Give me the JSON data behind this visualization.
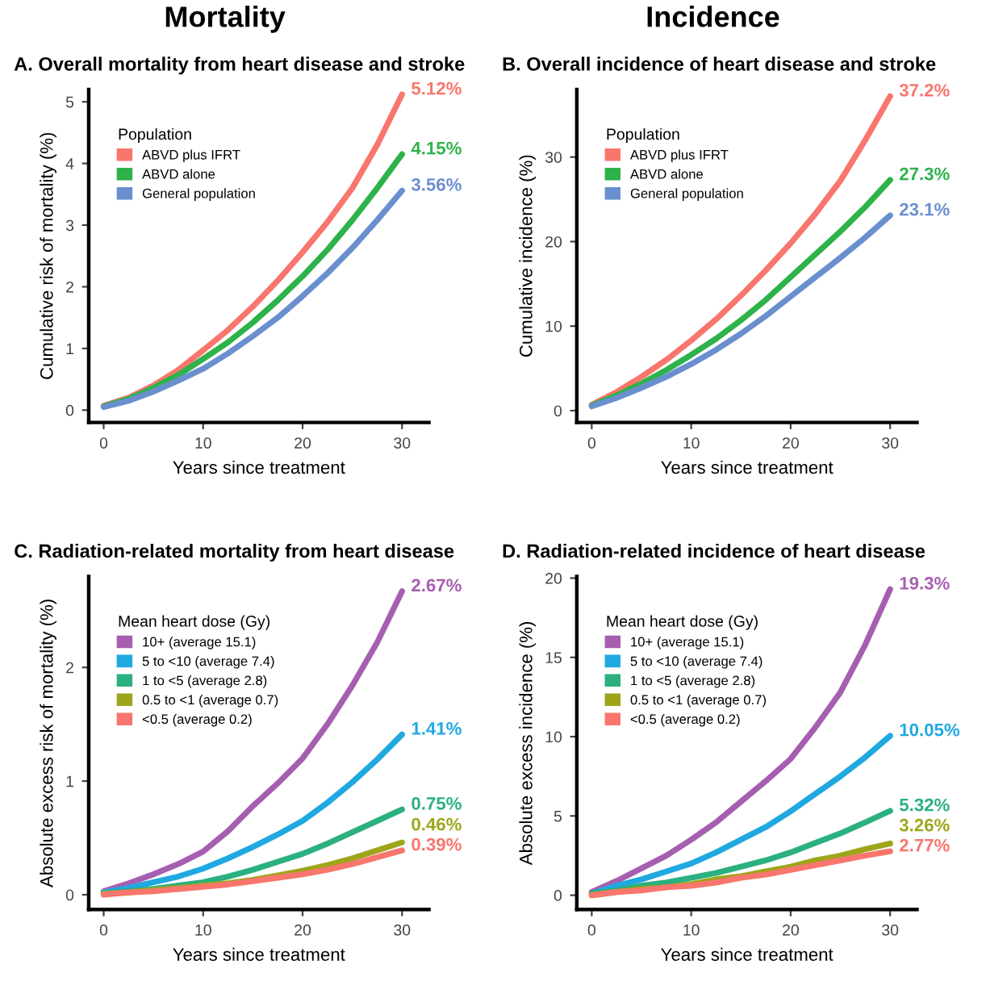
{
  "chart_data": [
    {
      "type": "line",
      "annotations": [
        "Mortality"
      ],
      "title": "A. Overall mortality from heart disease and stroke",
      "xlabel": "Years since treatment",
      "ylabel": "Cumulative risk of mortality (%)",
      "legend_title": "Population",
      "legend": "top left",
      "grid": false,
      "line_style": "solid",
      "marker": "none",
      "x": [
        0,
        2.5,
        5,
        7.5,
        10,
        12.5,
        15,
        17.5,
        20,
        22.5,
        25,
        27.5,
        30
      ],
      "xlim": [
        -1.5,
        32.7
      ],
      "xticks": [
        0,
        10,
        20,
        30
      ],
      "ylim": [
        -0.2,
        5.2
      ],
      "yticks": [
        0,
        1,
        2,
        3,
        4,
        5
      ],
      "series": [
        {
          "name": "ABVD plus IFRT",
          "color": "#f8766d",
          "values": [
            0.07,
            0.2,
            0.4,
            0.65,
            0.97,
            1.3,
            1.68,
            2.1,
            2.56,
            3.05,
            3.6,
            4.3,
            5.12
          ],
          "value_labels": [
            null,
            null,
            null,
            null,
            null,
            null,
            null,
            null,
            null,
            null,
            null,
            null,
            "5.12%"
          ]
        },
        {
          "name": "ABVD alone",
          "color": "#2eb24a",
          "values": [
            0.06,
            0.18,
            0.36,
            0.57,
            0.83,
            1.1,
            1.42,
            1.78,
            2.17,
            2.6,
            3.08,
            3.6,
            4.15
          ],
          "value_labels": [
            null,
            null,
            null,
            null,
            null,
            null,
            null,
            null,
            null,
            null,
            null,
            null,
            "4.15%"
          ]
        },
        {
          "name": "General population",
          "color": "#6a8fcf",
          "values": [
            0.05,
            0.15,
            0.3,
            0.48,
            0.67,
            0.92,
            1.2,
            1.5,
            1.85,
            2.22,
            2.63,
            3.08,
            3.56
          ],
          "value_labels": [
            null,
            null,
            null,
            null,
            null,
            null,
            null,
            null,
            null,
            null,
            null,
            null,
            "3.56%"
          ]
        }
      ]
    },
    {
      "type": "line",
      "annotations": [
        "Incidence"
      ],
      "title": "B. Overall incidence of heart disease and stroke",
      "xlabel": "Years since treatment",
      "ylabel": "Cumulative incidence (%)",
      "legend_title": "Population",
      "legend": "top left",
      "grid": false,
      "line_style": "solid",
      "marker": "none",
      "x": [
        0,
        2.5,
        5,
        7.5,
        10,
        12.5,
        15,
        17.5,
        20,
        22.5,
        25,
        27.5,
        30
      ],
      "xlim": [
        -1.5,
        32.7
      ],
      "xticks": [
        0,
        10,
        20,
        30
      ],
      "ylim": [
        -1.4,
        38
      ],
      "yticks": [
        0,
        10,
        20,
        30
      ],
      "series": [
        {
          "name": "ABVD plus IFRT",
          "color": "#f8766d",
          "values": [
            0.7,
            2.2,
            4.0,
            6.0,
            8.3,
            10.8,
            13.6,
            16.6,
            19.8,
            23.3,
            27.2,
            32.0,
            37.2
          ],
          "value_labels": [
            null,
            null,
            null,
            null,
            null,
            null,
            null,
            null,
            null,
            null,
            null,
            null,
            "37.2%"
          ]
        },
        {
          "name": "ABVD alone",
          "color": "#2eb24a",
          "values": [
            0.6,
            1.8,
            3.2,
            4.8,
            6.6,
            8.5,
            10.7,
            13.1,
            15.8,
            18.5,
            21.2,
            24.1,
            27.3
          ],
          "value_labels": [
            null,
            null,
            null,
            null,
            null,
            null,
            null,
            null,
            null,
            null,
            null,
            null,
            "27.3%"
          ]
        },
        {
          "name": "General population",
          "color": "#6a8fcf",
          "values": [
            0.5,
            1.5,
            2.7,
            4.0,
            5.5,
            7.2,
            9.1,
            11.2,
            13.5,
            15.8,
            18.1,
            20.5,
            23.1
          ],
          "value_labels": [
            null,
            null,
            null,
            null,
            null,
            null,
            null,
            null,
            null,
            null,
            null,
            null,
            "23.1%"
          ]
        }
      ]
    },
    {
      "type": "line",
      "title": "C. Radiation-related mortality from heart disease",
      "xlabel": "Years since treatment",
      "ylabel": "Absolute excess risk of mortality (%)",
      "legend_title": "Mean heart dose (Gy)",
      "legend": "top left",
      "grid": false,
      "line_style": "solid",
      "marker": "none",
      "x": [
        0,
        2.5,
        5,
        7.5,
        10,
        12.5,
        15,
        17.5,
        20,
        22.5,
        25,
        27.5,
        30
      ],
      "xlim": [
        -1.5,
        32.7
      ],
      "xticks": [
        0,
        10,
        20,
        30
      ],
      "ylim": [
        -0.13,
        2.8
      ],
      "yticks": [
        0,
        1,
        2
      ],
      "series": [
        {
          "name": "10+ (average 15.1)",
          "color": "#a65fb0",
          "values": [
            0.03,
            0.1,
            0.18,
            0.27,
            0.38,
            0.56,
            0.78,
            0.98,
            1.2,
            1.5,
            1.84,
            2.22,
            2.67
          ],
          "value_labels": [
            null,
            null,
            null,
            null,
            null,
            null,
            null,
            null,
            null,
            null,
            null,
            null,
            "2.67%"
          ]
        },
        {
          "name": "5 to <10 (average 7.4)",
          "color": "#20a8e0",
          "values": [
            0.02,
            0.06,
            0.11,
            0.16,
            0.23,
            0.32,
            0.42,
            0.53,
            0.65,
            0.81,
            0.99,
            1.19,
            1.41
          ],
          "value_labels": [
            null,
            null,
            null,
            null,
            null,
            null,
            null,
            null,
            null,
            null,
            null,
            null,
            "1.41%"
          ]
        },
        {
          "name": "1 to <5 (average 2.8)",
          "color": "#2bb07f",
          "values": [
            0.01,
            0.03,
            0.05,
            0.08,
            0.11,
            0.16,
            0.22,
            0.29,
            0.36,
            0.45,
            0.55,
            0.65,
            0.75
          ],
          "value_labels": [
            null,
            null,
            null,
            null,
            null,
            null,
            null,
            null,
            null,
            null,
            null,
            null,
            "0.75%"
          ]
        },
        {
          "name": "0.5 to <1 (average 0.7)",
          "color": "#9ea51a",
          "values": [
            0.01,
            0.02,
            0.04,
            0.06,
            0.08,
            0.1,
            0.13,
            0.17,
            0.21,
            0.26,
            0.32,
            0.39,
            0.46
          ],
          "value_labels": [
            null,
            null,
            null,
            null,
            null,
            null,
            null,
            null,
            null,
            null,
            null,
            null,
            "0.46%"
          ]
        },
        {
          "name": "<0.5 (average 0.2)",
          "color": "#f8766d",
          "values": [
            0,
            0.02,
            0.03,
            0.05,
            0.07,
            0.09,
            0.12,
            0.15,
            0.18,
            0.22,
            0.27,
            0.33,
            0.39
          ],
          "value_labels": [
            null,
            null,
            null,
            null,
            null,
            null,
            null,
            null,
            null,
            null,
            null,
            null,
            "0.39%"
          ]
        }
      ]
    },
    {
      "type": "line",
      "title": "D. Radiation-related incidence of heart disease",
      "xlabel": "Years since treatment",
      "ylabel": "Absolute excess incidence (%)",
      "legend_title": "Mean heart dose (Gy)",
      "legend": "top left",
      "grid": false,
      "line_style": "solid",
      "marker": "none",
      "x": [
        0,
        2.5,
        5,
        7.5,
        10,
        12.5,
        15,
        17.5,
        20,
        22.5,
        25,
        27.5,
        30
      ],
      "xlim": [
        -1.5,
        32.7
      ],
      "xticks": [
        0,
        10,
        20,
        30
      ],
      "ylim": [
        -0.9,
        20.1
      ],
      "yticks": [
        0,
        5,
        10,
        15,
        20
      ],
      "series": [
        {
          "name": "10+ (average 15.1)",
          "color": "#a65fb0",
          "values": [
            0.2,
            0.9,
            1.7,
            2.5,
            3.5,
            4.6,
            5.9,
            7.2,
            8.6,
            10.6,
            12.8,
            15.8,
            19.3
          ],
          "value_labels": [
            null,
            null,
            null,
            null,
            null,
            null,
            null,
            null,
            null,
            null,
            null,
            null,
            "19.3%"
          ]
        },
        {
          "name": "5 to <10 (average 7.4)",
          "color": "#20a8e0",
          "values": [
            0.1,
            0.6,
            1.0,
            1.5,
            2.0,
            2.7,
            3.5,
            4.3,
            5.3,
            6.4,
            7.5,
            8.7,
            10.05
          ],
          "value_labels": [
            null,
            null,
            null,
            null,
            null,
            null,
            null,
            null,
            null,
            null,
            null,
            null,
            "10.05%"
          ]
        },
        {
          "name": "1 to <5 (average 2.8)",
          "color": "#2bb07f",
          "values": [
            0.1,
            0.3,
            0.6,
            0.8,
            1.1,
            1.4,
            1.8,
            2.2,
            2.7,
            3.3,
            3.9,
            4.6,
            5.32
          ],
          "value_labels": [
            null,
            null,
            null,
            null,
            null,
            null,
            null,
            null,
            null,
            null,
            null,
            null,
            "5.32%"
          ]
        },
        {
          "name": "0.5 to <1 (average 0.7)",
          "color": "#9ea51a",
          "values": [
            0.0,
            0.2,
            0.4,
            0.5,
            0.7,
            1.0,
            1.2,
            1.5,
            1.8,
            2.2,
            2.5,
            2.9,
            3.26
          ],
          "value_labels": [
            null,
            null,
            null,
            null,
            null,
            null,
            null,
            null,
            null,
            null,
            null,
            null,
            "3.26%"
          ]
        },
        {
          "name": "<0.5 (average 0.2)",
          "color": "#f8766d",
          "values": [
            0.0,
            0.2,
            0.3,
            0.5,
            0.6,
            0.8,
            1.1,
            1.3,
            1.6,
            1.9,
            2.2,
            2.5,
            2.77
          ],
          "value_labels": [
            null,
            null,
            null,
            null,
            null,
            null,
            null,
            null,
            null,
            null,
            null,
            null,
            "2.77%"
          ]
        }
      ]
    }
  ]
}
